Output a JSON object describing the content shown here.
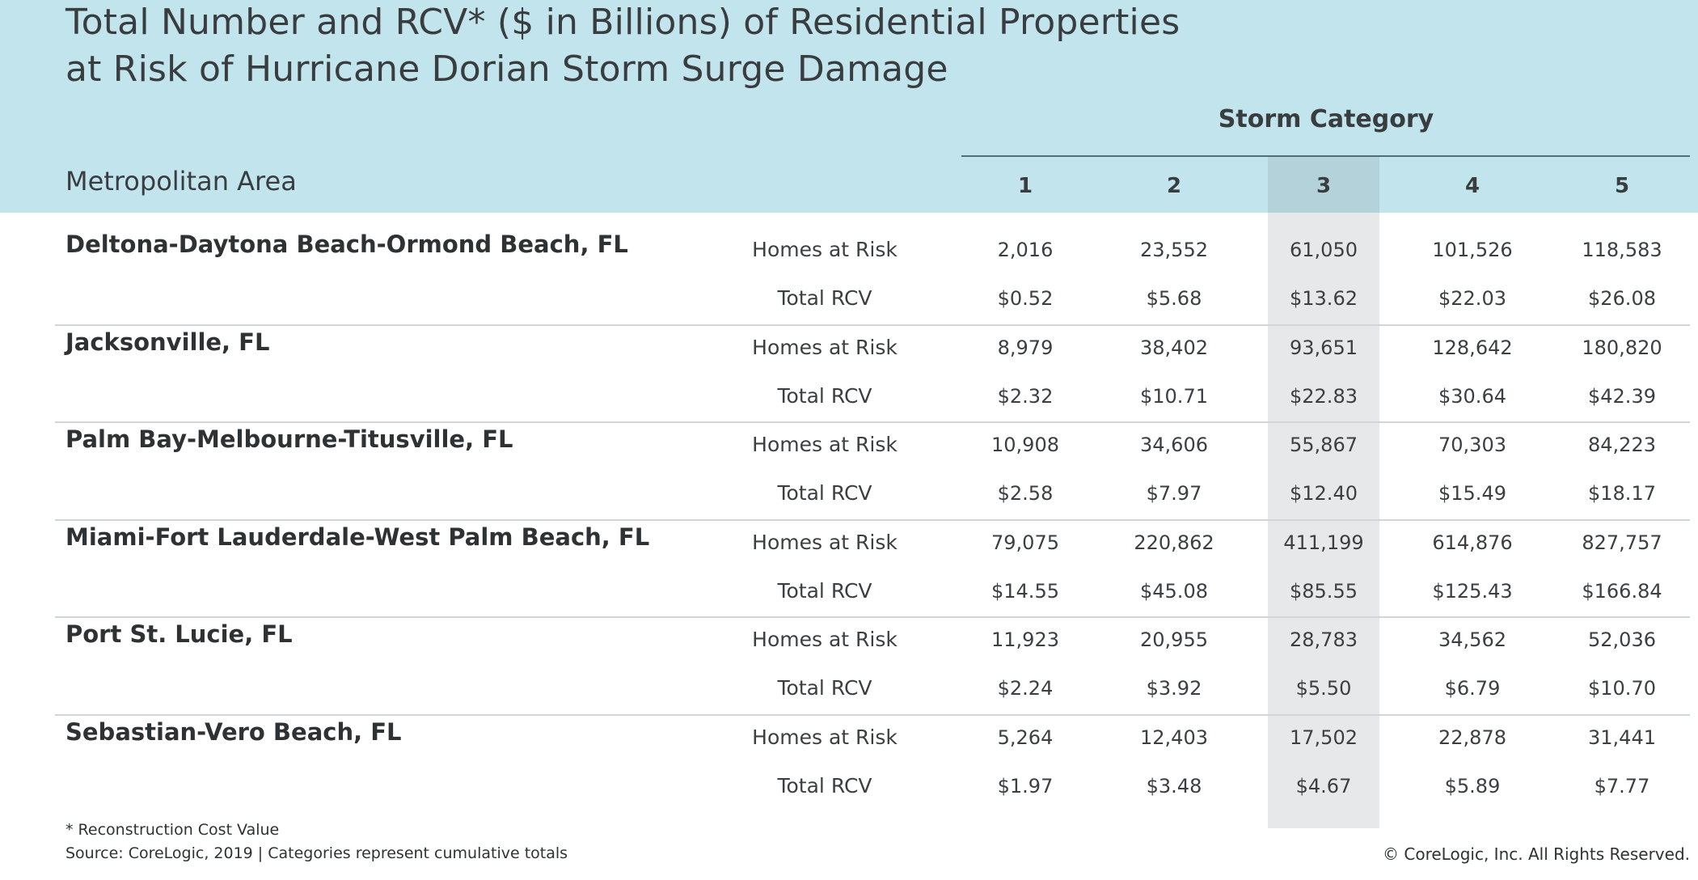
{
  "title_line1": "Total Number and RCV* ($ in Billions) of Residential Properties",
  "title_line2": "at Risk of Hurricane Dorian Storm Surge Damage",
  "storm_category_label": "Storm Category",
  "metro_area_header": "Metropolitan Area",
  "footnote": "* Reconstruction Cost Value",
  "source": "Source: CoreLogic, 2019 | Categories represent cumulative totals",
  "copyright": "© CoreLogic, Inc. All Rights Reserved.",
  "colors": {
    "header_band": "#c1e4ed",
    "highlight_column": "#e2e4e5"
  },
  "chart_data": {
    "type": "table",
    "categories": [
      "1",
      "2",
      "3",
      "4",
      "5"
    ],
    "highlighted_category": "3",
    "rows": [
      {
        "metro": "Deltona-Daytona Beach-Ormond Beach, FL",
        "homes_label": "Homes at Risk",
        "homes": [
          "2,016",
          "23,552",
          "61,050",
          "101,526",
          "118,583"
        ],
        "rcv_label": "Total RCV",
        "rcv": [
          "$0.52",
          "$5.68",
          "$13.62",
          "$22.03",
          "$26.08"
        ]
      },
      {
        "metro": "Jacksonville, FL",
        "homes_label": "Homes at Risk",
        "homes": [
          "8,979",
          "38,402",
          "93,651",
          "128,642",
          "180,820"
        ],
        "rcv_label": "Total RCV",
        "rcv": [
          "$2.32",
          "$10.71",
          "$22.83",
          "$30.64",
          "$42.39"
        ]
      },
      {
        "metro": "Palm Bay-Melbourne-Titusville, FL",
        "homes_label": "Homes at Risk",
        "homes": [
          "10,908",
          "34,606",
          "55,867",
          "70,303",
          "84,223"
        ],
        "rcv_label": "Total RCV",
        "rcv": [
          "$2.58",
          "$7.97",
          "$12.40",
          "$15.49",
          "$18.17"
        ]
      },
      {
        "metro": "Miami-Fort Lauderdale-West Palm Beach, FL",
        "homes_label": "Homes at Risk",
        "homes": [
          "79,075",
          "220,862",
          "411,199",
          "614,876",
          "827,757"
        ],
        "rcv_label": "Total RCV",
        "rcv": [
          "$14.55",
          "$45.08",
          "$85.55",
          "$125.43",
          "$166.84"
        ]
      },
      {
        "metro": "Port St. Lucie, FL",
        "homes_label": "Homes at Risk",
        "homes": [
          "11,923",
          "20,955",
          "28,783",
          "34,562",
          "52,036"
        ],
        "rcv_label": "Total RCV",
        "rcv": [
          "$2.24",
          "$3.92",
          "$5.50",
          "$6.79",
          "$10.70"
        ]
      },
      {
        "metro": "Sebastian-Vero Beach, FL",
        "homes_label": "Homes at Risk",
        "homes": [
          "5,264",
          "12,403",
          "17,502",
          "22,878",
          "31,441"
        ],
        "rcv_label": "Total RCV",
        "rcv": [
          "$1.97",
          "$3.48",
          "$4.67",
          "$5.89",
          "$7.77"
        ]
      }
    ]
  }
}
